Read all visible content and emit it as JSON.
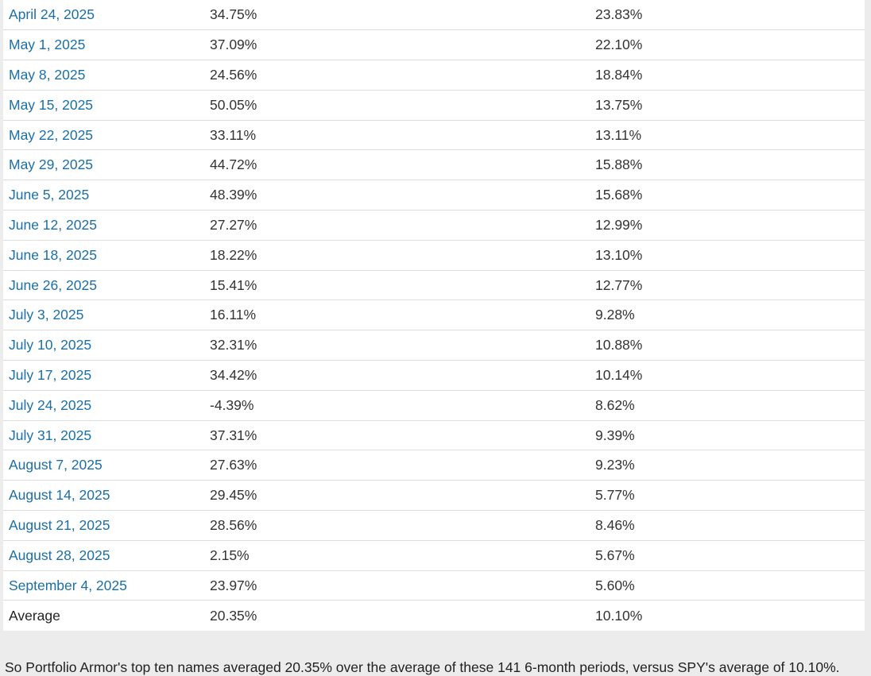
{
  "table": {
    "rows": [
      {
        "date": "April 24, 2025",
        "portfolio": "34.75%",
        "spy": "23.83%"
      },
      {
        "date": "May 1, 2025",
        "portfolio": "37.09%",
        "spy": "22.10%"
      },
      {
        "date": "May 8, 2025",
        "portfolio": "24.56%",
        "spy": "18.84%"
      },
      {
        "date": "May 15, 2025",
        "portfolio": "50.05%",
        "spy": "13.75%"
      },
      {
        "date": "May 22, 2025",
        "portfolio": "33.11%",
        "spy": "13.11%"
      },
      {
        "date": "May 29, 2025",
        "portfolio": "44.72%",
        "spy": "15.88%"
      },
      {
        "date": "June 5, 2025",
        "portfolio": "48.39%",
        "spy": "15.68%"
      },
      {
        "date": "June 12, 2025",
        "portfolio": "27.27%",
        "spy": "12.99%"
      },
      {
        "date": "June 18, 2025",
        "portfolio": "18.22%",
        "spy": "13.10%"
      },
      {
        "date": "June 26, 2025",
        "portfolio": "15.41%",
        "spy": "12.77%"
      },
      {
        "date": "July 3, 2025",
        "portfolio": "16.11%",
        "spy": "9.28%"
      },
      {
        "date": "July 10, 2025",
        "portfolio": "32.31%",
        "spy": "10.88%"
      },
      {
        "date": "July 17, 2025",
        "portfolio": "34.42%",
        "spy": "10.14%"
      },
      {
        "date": "July 24, 2025",
        "portfolio": "-4.39%",
        "spy": "8.62%"
      },
      {
        "date": "July 31, 2025",
        "portfolio": "37.31%",
        "spy": "9.39%"
      },
      {
        "date": "August 7, 2025",
        "portfolio": "27.63%",
        "spy": "9.23%"
      },
      {
        "date": "August 14, 2025",
        "portfolio": "29.45%",
        "spy": "5.77%"
      },
      {
        "date": "August 21, 2025",
        "portfolio": "28.56%",
        "spy": "8.46%"
      },
      {
        "date": "August 28, 2025",
        "portfolio": "2.15%",
        "spy": "5.67%"
      },
      {
        "date": "September 4, 2025",
        "portfolio": "23.97%",
        "spy": "5.60%"
      }
    ],
    "average": {
      "label": "Average",
      "portfolio": "20.35%",
      "spy": "10.10%"
    }
  },
  "summary": "So Portfolio Armor's top ten names averaged 20.35% over the average of these 141 6-month periods, versus SPY's average of 10.10%.",
  "colors": {
    "link": "#1a6fa6",
    "text": "#333333",
    "page_background": "#ececec",
    "table_background": "#ffffff",
    "row_divider": "#dddddd"
  }
}
